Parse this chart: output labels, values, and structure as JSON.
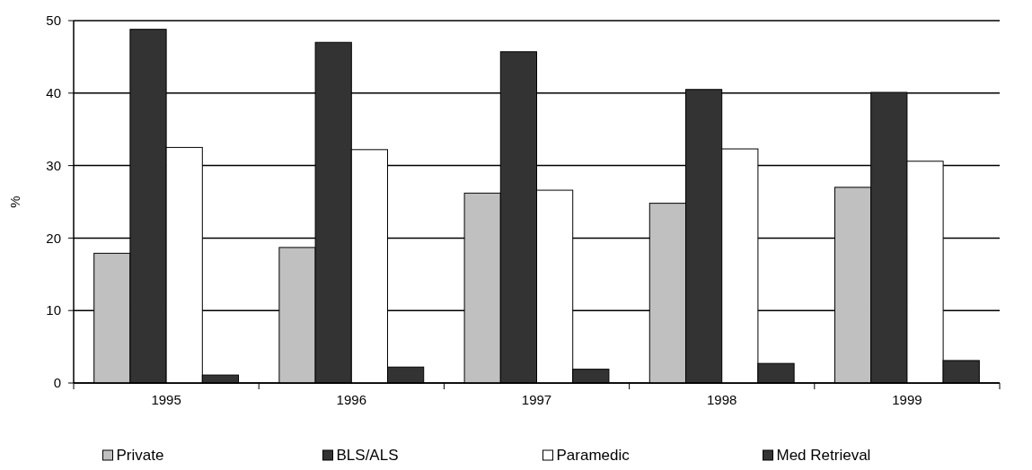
{
  "chart_data": {
    "type": "bar",
    "ylabel": "%",
    "categories": [
      "1995",
      "1996",
      "1997",
      "1998",
      "1999"
    ],
    "series": [
      {
        "name": "Private",
        "color": "#c0c0c0",
        "values": [
          17.9,
          18.7,
          26.2,
          24.8,
          27.0
        ]
      },
      {
        "name": "BLS/ALS",
        "color": "#333333",
        "values": [
          48.8,
          47.0,
          45.7,
          40.5,
          40.1
        ]
      },
      {
        "name": "Paramedic",
        "color": "#ffffff",
        "values": [
          32.5,
          32.2,
          26.6,
          32.3,
          30.6
        ]
      },
      {
        "name": "Med Retrieval",
        "color": "#333333",
        "values": [
          1.1,
          2.2,
          1.9,
          2.7,
          3.1
        ]
      }
    ],
    "ylim": [
      0,
      50
    ],
    "yticks": [
      0,
      10,
      20,
      30,
      40,
      50
    ],
    "grid": "y",
    "legend": "bottom"
  }
}
